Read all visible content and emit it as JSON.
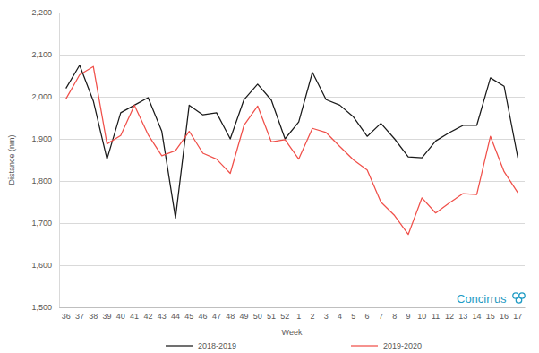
{
  "chart_data": {
    "type": "line",
    "x_label": "Week",
    "y_label": "Distance (nm)",
    "annotations": [
      "Concirrus"
    ],
    "categories": [
      "36",
      "37",
      "38",
      "39",
      "40",
      "41",
      "42",
      "43",
      "44",
      "45",
      "46",
      "47",
      "48",
      "49",
      "50",
      "51",
      "52",
      "1",
      "2",
      "3",
      "4",
      "5",
      "6",
      "7",
      "8",
      "9",
      "10",
      "11",
      "12",
      "13",
      "14",
      "15",
      "16",
      "17"
    ],
    "series": [
      {
        "name": "2018-2019",
        "color": "#1a1a1a",
        "values": [
          2020,
          2075,
          1990,
          1852,
          1962,
          1980,
          1998,
          1918,
          1712,
          1980,
          1957,
          1962,
          1900,
          1993,
          2030,
          1992,
          1900,
          1940,
          2058,
          1993,
          1980,
          1952,
          1906,
          1937,
          1900,
          1857,
          1855,
          1895,
          1915,
          1932,
          1932,
          2045,
          2025,
          1855
        ]
      },
      {
        "name": "2019-2020",
        "color": "#f0504a",
        "values": [
          1995,
          2052,
          2072,
          1888,
          1908,
          1980,
          1910,
          1860,
          1872,
          1918,
          1866,
          1852,
          1818,
          1932,
          1978,
          1893,
          1898,
          1852,
          1925,
          1915,
          1882,
          1850,
          1826,
          1750,
          1718,
          1673,
          1760,
          1724,
          1748,
          1770,
          1768,
          1906,
          1822,
          1772
        ]
      }
    ],
    "ylim": [
      1500,
      2200
    ],
    "yticks": [
      {
        "value": 1500,
        "label": "1,500"
      },
      {
        "value": 1600,
        "label": "1,600"
      },
      {
        "value": 1700,
        "label": "1,700"
      },
      {
        "value": 1800,
        "label": "1,800"
      },
      {
        "value": 1900,
        "label": "1,900"
      },
      {
        "value": 2000,
        "label": "2,000"
      },
      {
        "value": 2100,
        "label": "2,100"
      },
      {
        "value": 2200,
        "label": "2,200"
      }
    ],
    "grid": true,
    "legend": "bottom"
  }
}
